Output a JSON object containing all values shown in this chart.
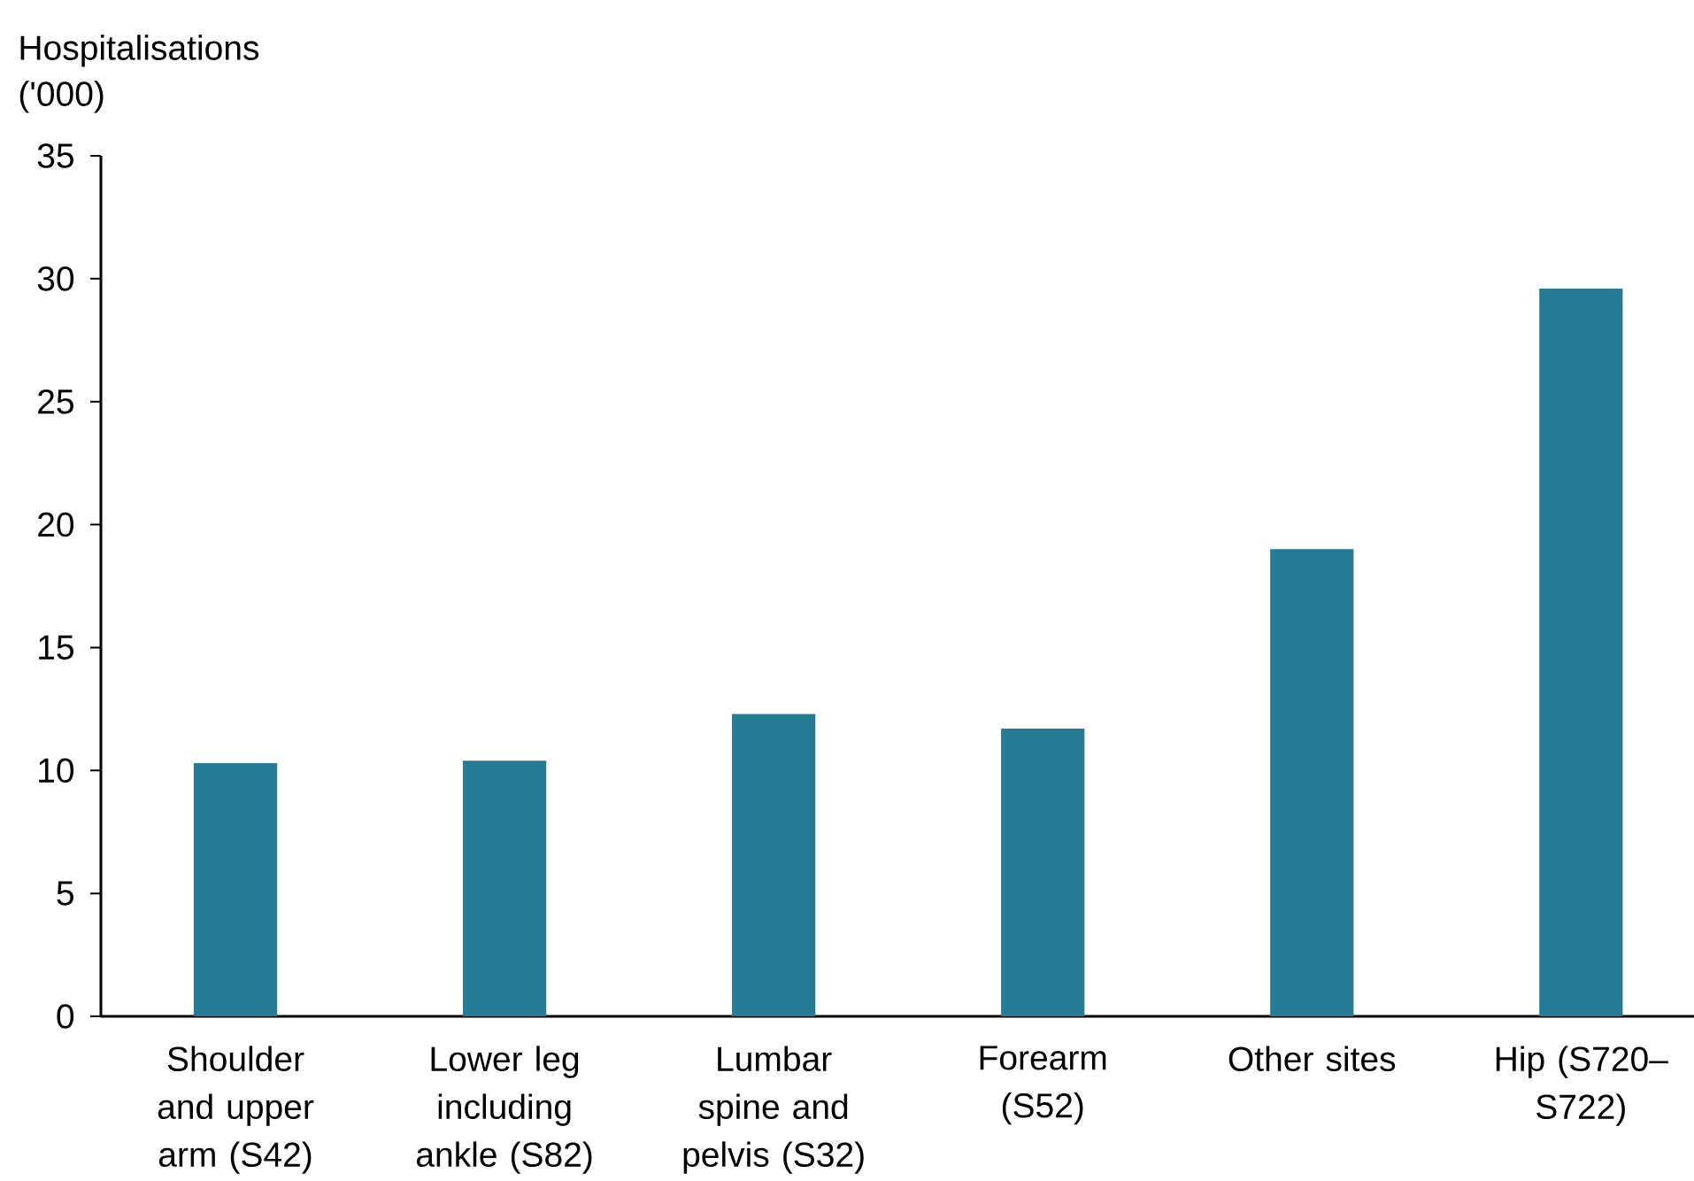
{
  "chart_data": {
    "type": "bar",
    "ylabel": "Hospitalisations ('000)",
    "categories": [
      "Shoulder and upper arm (S42)",
      "Lower leg including ankle (S82)",
      "Lumbar spine and pelvis (S32)",
      "Forearm (S52)",
      "Other sites",
      "Hip (S720–S722)"
    ],
    "values": [
      10.3,
      10.4,
      12.3,
      11.7,
      19.0,
      29.6
    ],
    "color": "#287b95",
    "ylim": [
      0,
      35
    ],
    "yticks": [
      0,
      5,
      10,
      15,
      20,
      25,
      30,
      35
    ]
  }
}
